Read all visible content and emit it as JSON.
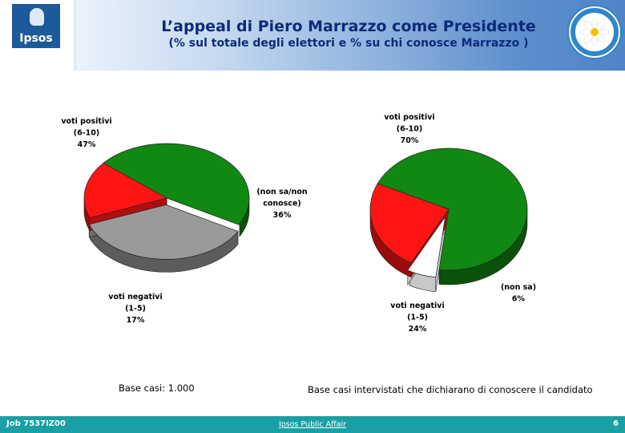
{
  "header": {
    "title": "L’appeal di Piero Marrazzo come Presidente",
    "subtitle": "(% sul totale degli elettori e % su chi conosce Marrazzo )",
    "logo_left_text": "Ipsos",
    "logo_right_text": "DEMOCRAZIA È LIBERTÀ MARGHERITA"
  },
  "chart_data": [
    {
      "type": "pie",
      "slices": [
        {
          "label_lines": [
            "voti positivi",
            "(6-10)",
            "47%"
          ],
          "value": 47,
          "color": "#118811"
        },
        {
          "label_lines": [
            "(non sa/non",
            "conosce)",
            "36%"
          ],
          "value": 36,
          "color": "#9a9a9a"
        },
        {
          "label_lines": [
            "voti negativi",
            "(1-5)",
            "17%"
          ],
          "value": 17,
          "color": "#ff1414"
        }
      ]
    },
    {
      "type": "pie",
      "slices": [
        {
          "label_lines": [
            "voti positivi",
            "(6-10)",
            "70%"
          ],
          "value": 70,
          "color": "#118811"
        },
        {
          "label_lines": [
            "(non sa)",
            "6%"
          ],
          "value": 6,
          "color": "#ffffff"
        },
        {
          "label_lines": [
            "voti negativi",
            "(1-5)",
            "24%"
          ],
          "value": 24,
          "color": "#ff1414"
        }
      ]
    }
  ],
  "base_notes": {
    "left": "Base casi: 1.000",
    "right": "Base casi intervistati che dichiarano di conoscere il candidato"
  },
  "footer": {
    "job": "Job 7537IZ00",
    "center": "Ipsos Public Affair",
    "page": "6"
  }
}
